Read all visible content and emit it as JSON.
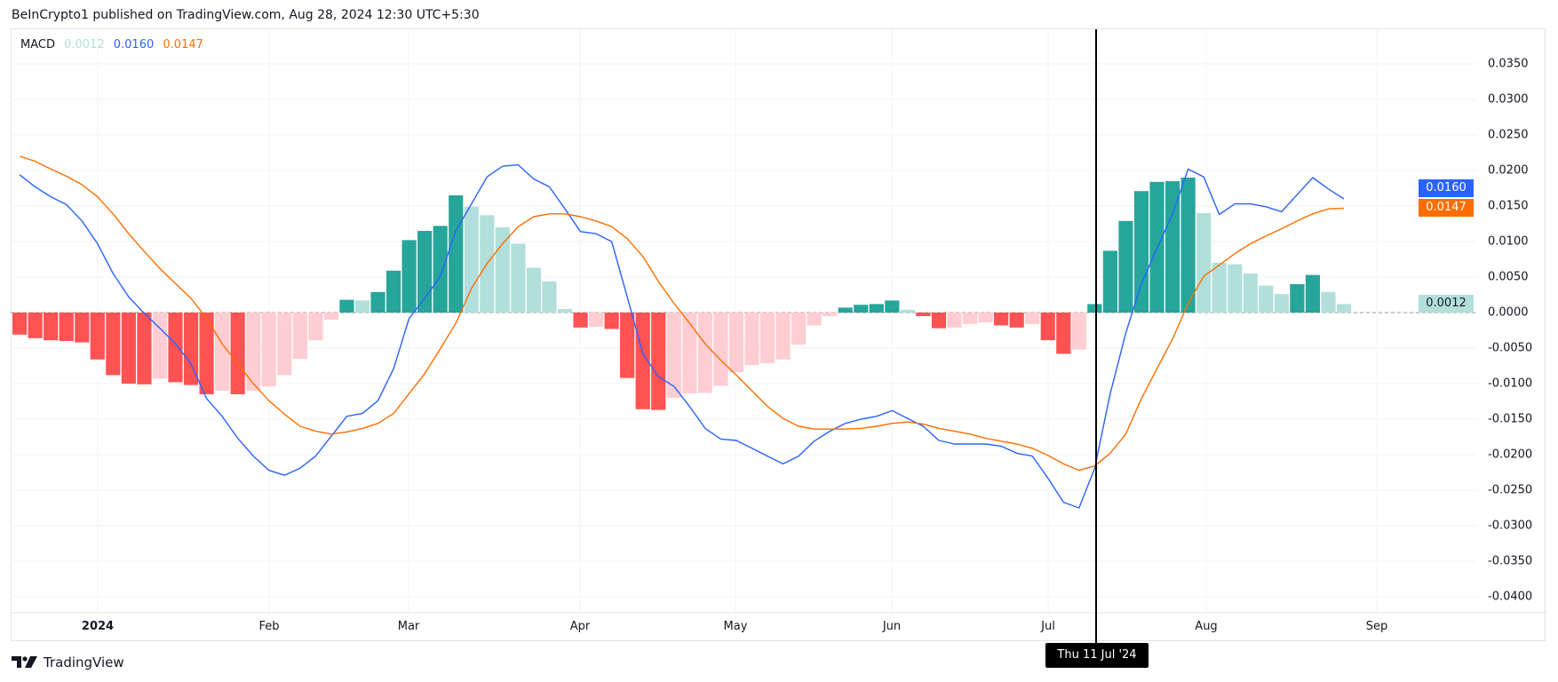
{
  "header": {
    "text": "BeInCrypto1 published on TradingView.com, Aug 28, 2024 12:30 UTC+5:30"
  },
  "legend": {
    "name": "MACD",
    "histogram": "0.0012",
    "macd": "0.0160",
    "signal": "0.0147"
  },
  "colors": {
    "macd_line": "#2962FF",
    "signal_line": "#FF6D00",
    "hist_pos_rising": "#26A69A",
    "hist_pos_falling": "#B2DFDB",
    "hist_neg_falling": "#FF5252",
    "hist_neg_rising": "#FFCDD2",
    "grid": "#f0f3fa",
    "crosshair": "#000000"
  },
  "chart_data": {
    "type": "bar+line",
    "title": "MACD",
    "ylim": [
      -0.0425,
      0.0395
    ],
    "grid": true,
    "y_ticks": [
      "0.0350",
      "0.0300",
      "0.0250",
      "0.0200",
      "0.0150",
      "0.0100",
      "0.0050",
      "0.0000",
      "-0.0050",
      "-0.0100",
      "-0.0150",
      "-0.0200",
      "-0.0250",
      "-0.0300",
      "-0.0350",
      "-0.0400"
    ],
    "x_ticks": [
      "2024",
      "Feb",
      "Mar",
      "Apr",
      "May",
      "Jun",
      "Jul",
      "Aug",
      "Sep"
    ],
    "histogram": [
      -0.0031,
      -0.0036,
      -0.0039,
      -0.004,
      -0.0042,
      -0.0066,
      -0.0088,
      -0.01,
      -0.0101,
      -0.0093,
      -0.0098,
      -0.0102,
      -0.0115,
      -0.011,
      -0.0115,
      -0.011,
      -0.0104,
      -0.0088,
      -0.0065,
      -0.0039,
      -0.001,
      0.0018,
      0.0017,
      0.0029,
      0.0059,
      0.0102,
      0.0115,
      0.0122,
      0.0165,
      0.0149,
      0.0137,
      0.012,
      0.0097,
      0.0063,
      0.0044,
      0.0005,
      -0.0021,
      -0.002,
      -0.0023,
      -0.0092,
      -0.0136,
      -0.0137,
      -0.012,
      -0.0114,
      -0.0113,
      -0.0103,
      -0.0084,
      -0.0074,
      -0.0071,
      -0.0066,
      -0.0045,
      -0.0018,
      -0.0005,
      0.0007,
      0.0011,
      0.0012,
      0.0017,
      0.0004,
      -0.0005,
      -0.0022,
      -0.0021,
      -0.0016,
      -0.0014,
      -0.0018,
      -0.0021,
      -0.0016,
      -0.0039,
      -0.0058,
      -0.0052,
      0.0012,
      0.0087,
      0.0129,
      0.0171,
      0.0184,
      0.0185,
      0.019,
      0.014,
      0.007,
      0.0068,
      0.0055,
      0.0038,
      0.0026,
      0.004,
      0.0053,
      0.0029,
      0.0012
    ],
    "series": [
      {
        "name": "MACD",
        "values": [
          0.0194,
          0.0177,
          0.0163,
          0.0152,
          0.0129,
          0.0097,
          0.0055,
          0.0022,
          -0.0001,
          -0.0022,
          -0.0044,
          -0.0072,
          -0.0121,
          -0.0146,
          -0.0177,
          -0.0202,
          -0.0222,
          -0.0229,
          -0.0219,
          -0.0202,
          -0.0174,
          -0.0146,
          -0.0142,
          -0.0124,
          -0.0079,
          -0.0008,
          0.002,
          0.0051,
          0.0115,
          0.0153,
          0.0191,
          0.0206,
          0.0208,
          0.0188,
          0.0177,
          0.0146,
          0.0114,
          0.0111,
          0.01,
          0.0022,
          -0.0058,
          -0.009,
          -0.0104,
          -0.0132,
          -0.0163,
          -0.0178,
          -0.018,
          -0.0191,
          -0.0202,
          -0.0213,
          -0.0202,
          -0.0181,
          -0.0167,
          -0.0156,
          -0.015,
          -0.0146,
          -0.0138,
          -0.0149,
          -0.016,
          -0.018,
          -0.0185,
          -0.0185,
          -0.0185,
          -0.0188,
          -0.0198,
          -0.0202,
          -0.0233,
          -0.0267,
          -0.0275,
          -0.0219,
          -0.0114,
          -0.0029,
          0.0041,
          0.009,
          0.0139,
          0.0202,
          0.0191,
          0.0138,
          0.0153,
          0.0153,
          0.0149,
          0.0142,
          0.0166,
          0.019,
          0.0174,
          0.016
        ]
      },
      {
        "name": "Signal",
        "values": [
          0.022,
          0.0213,
          0.0202,
          0.0192,
          0.018,
          0.0163,
          0.0139,
          0.0111,
          0.0086,
          0.0062,
          0.0041,
          0.002,
          -0.0008,
          -0.0044,
          -0.0072,
          -0.01,
          -0.0124,
          -0.0143,
          -0.016,
          -0.0167,
          -0.0171,
          -0.0168,
          -0.0163,
          -0.0156,
          -0.0142,
          -0.0114,
          -0.0086,
          -0.0051,
          -0.0015,
          0.0034,
          0.0069,
          0.0097,
          0.0121,
          0.0135,
          0.0139,
          0.0139,
          0.0135,
          0.0129,
          0.0121,
          0.0104,
          0.0079,
          0.0044,
          0.0013,
          -0.0015,
          -0.0044,
          -0.0067,
          -0.0088,
          -0.011,
          -0.0132,
          -0.0149,
          -0.016,
          -0.0164,
          -0.0164,
          -0.0164,
          -0.0163,
          -0.016,
          -0.0156,
          -0.0154,
          -0.0157,
          -0.0163,
          -0.0167,
          -0.0171,
          -0.0177,
          -0.0181,
          -0.0185,
          -0.0191,
          -0.0201,
          -0.0213,
          -0.0222,
          -0.0216,
          -0.0198,
          -0.0171,
          -0.0121,
          -0.0079,
          -0.0037,
          0.0013,
          0.0051,
          0.0067,
          0.0083,
          0.0097,
          0.0108,
          0.0118,
          0.0129,
          0.0139,
          0.0146,
          0.0147
        ]
      }
    ],
    "crosshair": {
      "label": "Thu 11 Jul '24"
    },
    "price_tags": {
      "macd": "0.0160",
      "signal": "0.0147",
      "histogram": "0.0012"
    }
  },
  "footer": {
    "brand": "TradingView"
  }
}
